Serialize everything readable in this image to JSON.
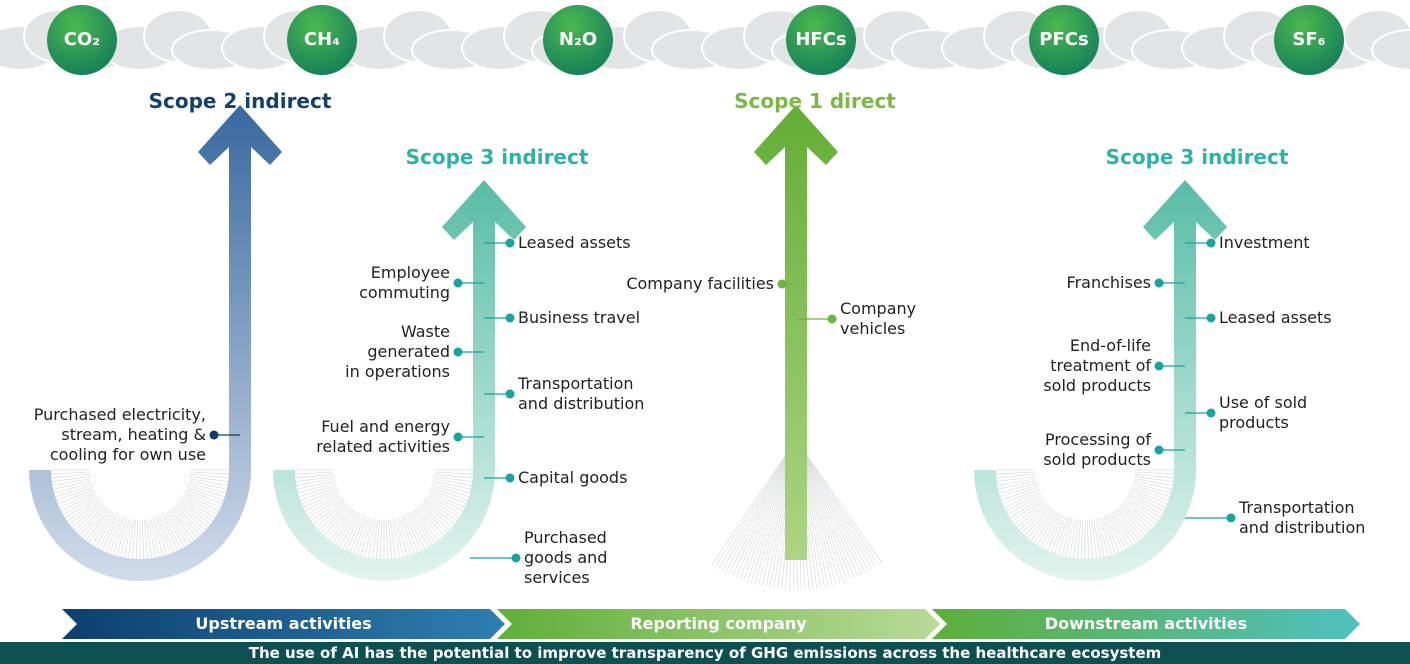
{
  "gases": [
    "CO₂",
    "CH₄",
    "N₂O",
    "HFCs",
    "PFCs",
    "SF₆"
  ],
  "scopes": [
    {
      "title": "Scope 2 indirect",
      "left": [
        "Purchased electricity,\nstream, heating &\ncooling for own use"
      ],
      "right": []
    },
    {
      "title": "Scope 3 indirect",
      "left": [
        "Employee\ncommuting",
        "Waste\ngenerated\nin operations",
        "Fuel and energy\nrelated activities"
      ],
      "right": [
        "Leased assets",
        "Business travel",
        "Transportation\nand distribution",
        "Capital goods",
        "Purchased\ngoods and\nservices"
      ]
    },
    {
      "title": "Scope 1 direct",
      "left": [
        "Company facilities"
      ],
      "right": [
        "Company\nvehicles"
      ]
    },
    {
      "title": "Scope 3 indirect",
      "left": [
        "Franchises",
        "End-of-life\ntreatment of\nsold products",
        "Processing of\nsold products"
      ],
      "right": [
        "Investment",
        "Leased assets",
        "Use of sold\nproducts",
        "Transportation\nand distribution"
      ]
    }
  ],
  "stages": [
    "Upstream activities",
    "Reporting company",
    "Downstream activities"
  ],
  "caption": "The use of AI has the potential to improve transparency of GHG emissions across the healthcare ecosystem"
}
